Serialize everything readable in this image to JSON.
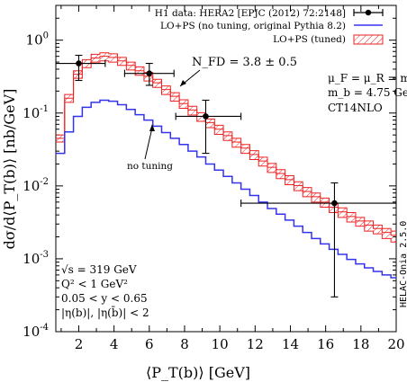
{
  "chart_data": {
    "type": "line",
    "xlabel": "⟨P_T(b)⟩ [GeV]",
    "ylabel": "dσ/d⟨P_T(b)⟩ [nb/GeV]",
    "xlim": [
      0.7,
      20
    ],
    "ylim": [
      0.0001,
      3
    ],
    "yscale": "log",
    "x_ticks": [
      2,
      4,
      6,
      8,
      10,
      12,
      14,
      16,
      18,
      20
    ],
    "x_tick_labels": [
      "2",
      "4",
      "6",
      "8",
      "10",
      "12",
      "14",
      "16",
      "18",
      "20"
    ],
    "y_ticks": [
      0.0001,
      0.001,
      0.01,
      0.1,
      1
    ],
    "y_tick_labels": [
      "10",
      "10",
      "10",
      "10",
      "10"
    ],
    "y_tick_exponents": [
      "-4",
      "-3",
      "-2",
      "-1",
      "0"
    ],
    "legend_position": "top-right",
    "legend": [
      {
        "label": "H1 data: HERA2 [EPJC (2012) 72:2148]",
        "color": "#000000",
        "marker": "dot-errorbar"
      },
      {
        "label": "LO+PS (no tuning, original Pythia 8.2)",
        "color": "#3333ee",
        "marker": "line"
      },
      {
        "label": "LO+PS (tuned)",
        "color": "#ee2222",
        "marker": "band"
      }
    ],
    "annotations": {
      "nfd": "N_FD = 3.8 ± 0.5",
      "scales_1": "μ_F = μ_R = m_T",
      "scales_2": "m_b = 4.75 GeV",
      "pdf": "CT14NLO",
      "no_tuning": "no tuning",
      "cuts": [
        "√s = 319 GeV",
        "Q² < 1 GeV²",
        "0.05 < y < 0.65",
        "|η(b)|, |η(b̄)| < 2"
      ],
      "watermark": "HELAC-Onia 2.5.0"
    },
    "bin_edges": [
      0.7,
      1.2,
      1.7,
      2.2,
      2.7,
      3.2,
      3.7,
      4.2,
      4.7,
      5.2,
      5.7,
      6.2,
      6.7,
      7.2,
      7.7,
      8.2,
      8.7,
      9.2,
      9.7,
      10.2,
      10.7,
      11.2,
      11.7,
      12.2,
      12.7,
      13.2,
      13.7,
      14.2,
      14.7,
      15.2,
      15.7,
      16.2,
      16.7,
      17.2,
      17.7,
      18.2,
      18.7,
      19.2,
      19.7,
      20.0
    ],
    "series": [
      {
        "name": "LO+PS (tuned)",
        "color": "#ee2222",
        "center": [
          0.045,
          0.16,
          0.34,
          0.48,
          0.57,
          0.6,
          0.58,
          0.52,
          0.45,
          0.38,
          0.32,
          0.26,
          0.21,
          0.17,
          0.135,
          0.11,
          0.09,
          0.074,
          0.06,
          0.049,
          0.04,
          0.033,
          0.027,
          0.022,
          0.018,
          0.0148,
          0.0122,
          0.0101,
          0.0084,
          0.0071,
          0.006,
          0.0051,
          0.0044,
          0.0038,
          0.0033,
          0.0029,
          0.0026,
          0.0023,
          0.0021
        ],
        "lower": [
          0.04,
          0.14,
          0.3,
          0.42,
          0.5,
          0.52,
          0.5,
          0.45,
          0.39,
          0.33,
          0.275,
          0.225,
          0.18,
          0.146,
          0.116,
          0.094,
          0.077,
          0.063,
          0.051,
          0.042,
          0.034,
          0.028,
          0.023,
          0.0187,
          0.0153,
          0.0126,
          0.0104,
          0.0086,
          0.0071,
          0.006,
          0.0051,
          0.0043,
          0.0037,
          0.0032,
          0.0028,
          0.0024,
          0.0022,
          0.0019,
          0.0017
        ],
        "upper": [
          0.05,
          0.18,
          0.38,
          0.54,
          0.64,
          0.67,
          0.65,
          0.58,
          0.5,
          0.43,
          0.36,
          0.29,
          0.235,
          0.19,
          0.152,
          0.124,
          0.101,
          0.083,
          0.068,
          0.055,
          0.045,
          0.037,
          0.0305,
          0.0248,
          0.0203,
          0.0167,
          0.0138,
          0.0114,
          0.0095,
          0.008,
          0.0068,
          0.0058,
          0.005,
          0.0043,
          0.0037,
          0.0033,
          0.0029,
          0.0026,
          0.0024
        ]
      },
      {
        "name": "LO+PS (no tuning, original Pythia 8.2)",
        "color": "#3333ee",
        "values": [
          0.028,
          0.055,
          0.09,
          0.12,
          0.14,
          0.15,
          0.145,
          0.13,
          0.112,
          0.095,
          0.08,
          0.066,
          0.054,
          0.045,
          0.037,
          0.03,
          0.025,
          0.02,
          0.0165,
          0.0135,
          0.011,
          0.009,
          0.0074,
          0.006,
          0.0049,
          0.0041,
          0.0034,
          0.0028,
          0.0023,
          0.0019,
          0.0016,
          0.00135,
          0.00115,
          0.00098,
          0.00085,
          0.00075,
          0.00067,
          0.0006,
          0.00055
        ]
      },
      {
        "name": "H1 data: HERA2 [EPJC (2012) 72:2148]",
        "color": "#000000",
        "points": [
          {
            "x": 2.0,
            "y": 0.48,
            "xlo": 0.7,
            "xhi": 3.5,
            "ylo": 0.28,
            "yhi": 0.62
          },
          {
            "x": 6.0,
            "y": 0.35,
            "xlo": 4.6,
            "xhi": 7.4,
            "ylo": 0.24,
            "yhi": 0.48
          },
          {
            "x": 9.2,
            "y": 0.09,
            "xlo": 7.5,
            "xhi": 11.2,
            "ylo": 0.028,
            "yhi": 0.15
          },
          {
            "x": 16.5,
            "y": 0.0058,
            "xlo": 11.2,
            "xhi": 20.0,
            "ylo": 0.0003,
            "yhi": 0.011
          }
        ]
      }
    ]
  }
}
